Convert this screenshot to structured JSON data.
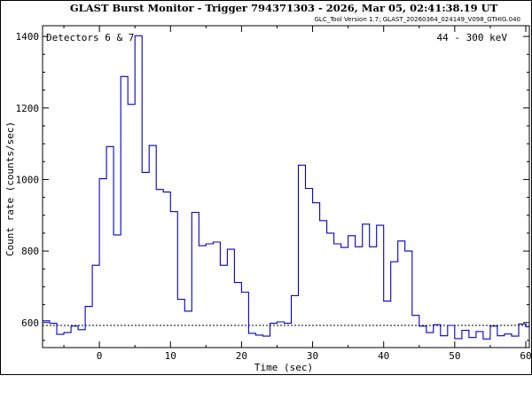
{
  "header": {
    "title": "GLAST Burst Monitor  -  Trigger 794371303  -  2026, Mar 05, 02:41:38.19 UT",
    "version": "GLC_Tool Version 1.7; GLAST_20260364_024149_V098_GTHIG.040"
  },
  "colors": {
    "series": "#0000cc",
    "background_line": "#000000",
    "axes": "#000000"
  },
  "chart_data": {
    "type": "line",
    "step": true,
    "title": "",
    "xlabel": "Time (sec)",
    "ylabel": "Count rate (counts/sec)",
    "xlim": [
      -8,
      60.5
    ],
    "ylim": [
      530,
      1430
    ],
    "xticks": [
      0,
      10,
      20,
      30,
      40,
      50,
      60
    ],
    "yticks": [
      600,
      800,
      1000,
      1200,
      1400
    ],
    "annotations": {
      "detectors": "Detectors 6 & 7",
      "energy": "44 - 300 keV"
    },
    "background_level": 592,
    "series": [
      {
        "edges": [
          -8,
          -7,
          -6,
          -5,
          -4,
          -3,
          -2,
          -1,
          0,
          1,
          2,
          3,
          4,
          5,
          6,
          7,
          8,
          9,
          10,
          11,
          12,
          13,
          14,
          15,
          16,
          17,
          18,
          19,
          20,
          21,
          22,
          23,
          24,
          25,
          26,
          27,
          28,
          29,
          30,
          31,
          32,
          33,
          34,
          35,
          36,
          37,
          38,
          39,
          40,
          41,
          42,
          43,
          44,
          45,
          46,
          47,
          48,
          49,
          50,
          51,
          52,
          53,
          54,
          55,
          56,
          57,
          58,
          59,
          60,
          61
        ],
        "values": [
          605,
          598,
          567,
          572,
          590,
          580,
          645,
          760,
          1002,
          1092,
          845,
          1288,
          1210,
          1402,
          1020,
          1095,
          972,
          965,
          910,
          665,
          632,
          908,
          815,
          820,
          825,
          760,
          805,
          712,
          685,
          570,
          565,
          562,
          598,
          602,
          598,
          675,
          1040,
          975,
          935,
          885,
          850,
          820,
          810,
          843,
          812,
          875,
          812,
          872,
          660,
          770,
          828,
          800,
          620,
          590,
          572,
          594,
          563,
          592,
          555,
          578,
          558,
          575,
          554,
          590,
          563,
          568,
          562,
          596,
          588
        ]
      }
    ]
  }
}
